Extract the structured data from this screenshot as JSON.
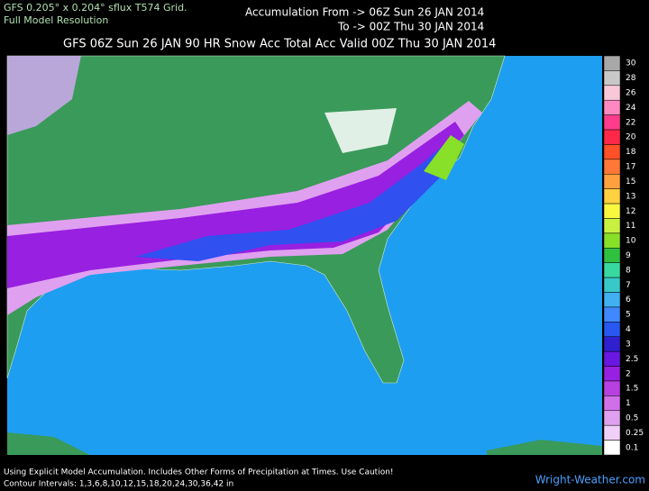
{
  "header": {
    "grid_line": "GFS 0.205° x 0.204° sflux T574 Grid.",
    "resolution": "Full Model Resolution",
    "accum_from": "Accumulation From ->  06Z Sun 26 JAN 2014",
    "accum_to": "To ->  00Z Thu 30 JAN 2014",
    "title": "GFS 06Z Sun 26 JAN  90 HR  Snow Acc Total Acc  Valid 00Z Thu 30 JAN 2014"
  },
  "legend": {
    "levels": [
      {
        "label": "30",
        "color": "#a8a8a8"
      },
      {
        "label": "28",
        "color": "#c8c8c8"
      },
      {
        "label": "26",
        "color": "#f8c8d8"
      },
      {
        "label": "24",
        "color": "#ff88c0"
      },
      {
        "label": "22",
        "color": "#ff3c8c"
      },
      {
        "label": "20",
        "color": "#ff2848"
      },
      {
        "label": "18",
        "color": "#ff5028"
      },
      {
        "label": "17",
        "color": "#ff7838"
      },
      {
        "label": "15",
        "color": "#ffa040"
      },
      {
        "label": "13",
        "color": "#ffd040"
      },
      {
        "label": "12",
        "color": "#f8f840"
      },
      {
        "label": "11",
        "color": "#c8f040"
      },
      {
        "label": "10",
        "color": "#88e028"
      },
      {
        "label": "9",
        "color": "#30c040"
      },
      {
        "label": "8",
        "color": "#38d8a0"
      },
      {
        "label": "7",
        "color": "#38c8c8"
      },
      {
        "label": "6",
        "color": "#40b0f0"
      },
      {
        "label": "5",
        "color": "#4088ff"
      },
      {
        "label": "4",
        "color": "#2858f0"
      },
      {
        "label": "3",
        "color": "#3020d0"
      },
      {
        "label": "2.5",
        "color": "#6818e0"
      },
      {
        "label": "2",
        "color": "#9820e0"
      },
      {
        "label": "1.5",
        "color": "#b840e0"
      },
      {
        "label": "1",
        "color": "#d070e8"
      },
      {
        "label": "0.5",
        "color": "#e0a0f0"
      },
      {
        "label": "0.25",
        "color": "#f0d0f8"
      },
      {
        "label": "0.1",
        "color": "#ffffff"
      }
    ]
  },
  "footer": {
    "caution": "Using Explicit Model Accumulation. Includes Other Forms of Precipitation at Times. Use Caution!",
    "intervals": "Contour Intervals: 1,3,6,8,10,12,15,18,20,24,30,36,42 in",
    "site": "Wright-Weather.com"
  }
}
